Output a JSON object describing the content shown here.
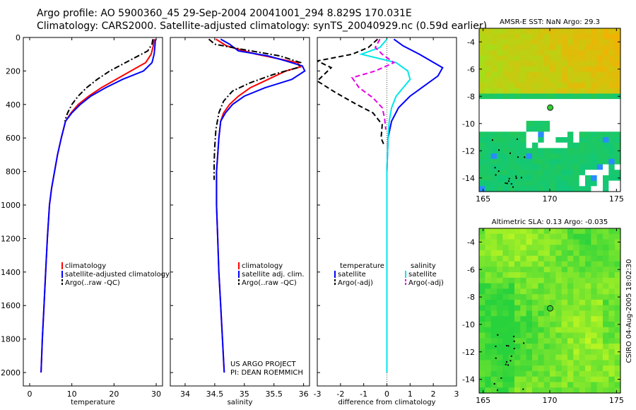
{
  "header": {
    "line1": "Argo profile: AO 5900360_45 29-Sep-2004 20041001_294 8.829S 170.031E",
    "line2": "Climatology: CARS2000. Satellite-adjusted climatology: synTS_20040929.nc (0.59d earlier)"
  },
  "credit": {
    "line1": "US ARGO PROJECT",
    "line2": "PI: DEAN ROEMMICH"
  },
  "timestamp": "CSIRO 04-Aug-2005 18:02:30",
  "colors": {
    "climatology": "#ff0000",
    "satellite": "#0000ff",
    "argo": "#000000",
    "salinity_satellite": "#00e6e6",
    "salinity_argo": "#e600e6"
  },
  "chart_data": [
    {
      "type": "line",
      "id": "temperature",
      "xlabel": "temperature",
      "ylabel": "",
      "xlim": [
        -1.5,
        31.5
      ],
      "ylim": [
        0,
        2080
      ],
      "y_inverted": true,
      "xticks": [
        0,
        10,
        20,
        30
      ],
      "xtick_labels": [
        "0",
        "10",
        "20",
        "30"
      ],
      "yticks": [
        0,
        200,
        400,
        600,
        800,
        1000,
        1200,
        1400,
        1600,
        1800,
        2000
      ],
      "ytick_labels": [
        "0",
        "200",
        "400",
        "600",
        "800",
        "1000",
        "1200",
        "1400",
        "1600",
        "1800",
        "2000"
      ],
      "legend": [
        "climatology",
        "satellite-adjusted climatology",
        "Argo(..raw -QC)"
      ],
      "series": [
        {
          "name": "climatology",
          "style": "solid",
          "color": "#ff0000",
          "points": [
            [
              29.5,
              10
            ],
            [
              29.3,
              50
            ],
            [
              28.8,
              100
            ],
            [
              27.5,
              150
            ],
            [
              24,
              200
            ],
            [
              20.5,
              250
            ],
            [
              17,
              300
            ],
            [
              14,
              350
            ],
            [
              11.5,
              400
            ],
            [
              9.8,
              450
            ],
            [
              8.5,
              500
            ],
            [
              7.5,
              600
            ],
            [
              6.6,
              700
            ],
            [
              5.9,
              800
            ],
            [
              5.2,
              900
            ],
            [
              4.7,
              1000
            ],
            [
              4.2,
              1200
            ],
            [
              3.8,
              1400
            ],
            [
              3.4,
              1600
            ],
            [
              3,
              1800
            ],
            [
              2.7,
              2000
            ]
          ]
        },
        {
          "name": "satellite-adjusted climatology",
          "style": "solid",
          "color": "#0000ff",
          "points": [
            [
              29.8,
              10
            ],
            [
              29.7,
              50
            ],
            [
              29.5,
              100
            ],
            [
              29,
              150
            ],
            [
              27,
              200
            ],
            [
              22,
              250
            ],
            [
              18,
              300
            ],
            [
              14.5,
              350
            ],
            [
              12,
              400
            ],
            [
              10,
              450
            ],
            [
              8.5,
              500
            ],
            [
              7.5,
              600
            ],
            [
              6.6,
              700
            ],
            [
              5.9,
              800
            ],
            [
              5.2,
              900
            ],
            [
              4.7,
              1000
            ],
            [
              4.2,
              1200
            ],
            [
              3.8,
              1400
            ],
            [
              3.4,
              1600
            ],
            [
              3,
              1800
            ],
            [
              2.7,
              2000
            ]
          ]
        },
        {
          "name": "Argo(..raw -QC)",
          "style": "dashdot",
          "color": "#000000",
          "points": [
            [
              29.2,
              10
            ],
            [
              29,
              40
            ],
            [
              28,
              80
            ],
            [
              25,
              120
            ],
            [
              22,
              160
            ],
            [
              19,
              200
            ],
            [
              16,
              250
            ],
            [
              13.5,
              300
            ],
            [
              11.5,
              350
            ],
            [
              10,
              400
            ],
            [
              9,
              450
            ],
            [
              8.3,
              500
            ]
          ]
        }
      ]
    },
    {
      "type": "line",
      "id": "salinity",
      "xlabel": "salinity",
      "xlim": [
        33.75,
        36.1
      ],
      "ylim": [
        0,
        2080
      ],
      "y_inverted": true,
      "xticks": [
        34,
        34.5,
        35,
        35.5,
        36
      ],
      "xtick_labels": [
        "34",
        "34.5",
        "35",
        "35.5",
        "36"
      ],
      "legend": [
        "climatology",
        "satellite adj. clim.",
        "Argo(..raw -QC)"
      ],
      "series": [
        {
          "name": "climatology",
          "style": "solid",
          "color": "#ff0000",
          "points": [
            [
              34.52,
              10
            ],
            [
              34.7,
              50
            ],
            [
              35.2,
              100
            ],
            [
              35.9,
              150
            ],
            [
              35.95,
              175
            ],
            [
              35.7,
              200
            ],
            [
              35.4,
              250
            ],
            [
              35.1,
              300
            ],
            [
              34.9,
              350
            ],
            [
              34.75,
              400
            ],
            [
              34.65,
              450
            ],
            [
              34.6,
              500
            ],
            [
              34.57,
              600
            ],
            [
              34.55,
              700
            ],
            [
              34.53,
              800
            ],
            [
              34.53,
              900
            ],
            [
              34.53,
              1000
            ],
            [
              34.55,
              1200
            ],
            [
              34.57,
              1400
            ],
            [
              34.6,
              1600
            ],
            [
              34.63,
              1800
            ],
            [
              34.66,
              2000
            ]
          ]
        },
        {
          "name": "satellite adj. clim.",
          "style": "solid",
          "color": "#0000ff",
          "points": [
            [
              34.6,
              10
            ],
            [
              34.75,
              40
            ],
            [
              34.9,
              80
            ],
            [
              35.4,
              110
            ],
            [
              35.7,
              140
            ],
            [
              35.98,
              170
            ],
            [
              36.02,
              200
            ],
            [
              35.8,
              250
            ],
            [
              35.35,
              300
            ],
            [
              35,
              350
            ],
            [
              34.8,
              400
            ],
            [
              34.68,
              450
            ],
            [
              34.6,
              500
            ],
            [
              34.57,
              600
            ],
            [
              34.55,
              700
            ],
            [
              34.53,
              800
            ],
            [
              34.53,
              900
            ],
            [
              34.53,
              1000
            ],
            [
              34.55,
              1200
            ],
            [
              34.57,
              1400
            ],
            [
              34.6,
              1600
            ],
            [
              34.63,
              1800
            ],
            [
              34.66,
              2000
            ]
          ]
        },
        {
          "name": "Argo(..raw -QC)",
          "style": "dashdot",
          "color": "#000000",
          "points": [
            [
              34.4,
              10
            ],
            [
              34.5,
              40
            ],
            [
              34.95,
              70
            ],
            [
              35.6,
              110
            ],
            [
              35.95,
              150
            ],
            [
              35.9,
              180
            ],
            [
              35.5,
              220
            ],
            [
              35.1,
              270
            ],
            [
              34.8,
              320
            ],
            [
              34.65,
              380
            ],
            [
              34.57,
              450
            ],
            [
              34.52,
              550
            ],
            [
              34.5,
              650
            ],
            [
              34.49,
              750
            ],
            [
              34.49,
              850
            ]
          ]
        }
      ]
    },
    {
      "type": "line",
      "id": "difference",
      "xlabel": "difference from climatology",
      "xlim": [
        -3,
        3
      ],
      "ylim": [
        0,
        2080
      ],
      "y_inverted": true,
      "xticks": [
        -3,
        -2,
        -1,
        0,
        1,
        2,
        3
      ],
      "xtick_labels": [
        "-3",
        "-2",
        "-1",
        "0",
        "1",
        "2",
        "3"
      ],
      "legend_temperature": [
        "temperature",
        "satellite",
        "Argo(-adj)"
      ],
      "legend_salinity": [
        "salinity",
        "satellite",
        "Argo(-adj)"
      ],
      "series": [
        {
          "name": "temperature satellite",
          "style": "solid",
          "color": "#0000ff",
          "points": [
            [
              0.3,
              10
            ],
            [
              0.7,
              50
            ],
            [
              1.4,
              100
            ],
            [
              2.4,
              180
            ],
            [
              2.2,
              230
            ],
            [
              1.5,
              300
            ],
            [
              1,
              350
            ],
            [
              0.5,
              420
            ],
            [
              0.2,
              500
            ],
            [
              0.05,
              600
            ],
            [
              0,
              800
            ],
            [
              0,
              1000
            ],
            [
              0,
              1200
            ],
            [
              0,
              1400
            ],
            [
              0,
              1600
            ],
            [
              0,
              1800
            ],
            [
              0,
              2000
            ]
          ]
        },
        {
          "name": "temperature Argo(-adj)",
          "style": "dashed",
          "color": "#000000",
          "points": [
            [
              -0.4,
              10
            ],
            [
              -0.8,
              60
            ],
            [
              -1.5,
              100
            ],
            [
              -3,
              140
            ],
            [
              -2.4,
              180
            ],
            [
              -3,
              260
            ],
            [
              -2.2,
              330
            ],
            [
              -1.3,
              400
            ],
            [
              -0.6,
              450
            ],
            [
              -0.2,
              520
            ],
            [
              -0.25,
              600
            ],
            [
              -0.1,
              650
            ]
          ]
        },
        {
          "name": "salinity satellite",
          "style": "solid",
          "color": "#00e6e6",
          "points": [
            [
              0,
              10
            ],
            [
              -0.3,
              60
            ],
            [
              -1.1,
              100
            ],
            [
              0.4,
              150
            ],
            [
              0.9,
              200
            ],
            [
              1,
              250
            ],
            [
              0.7,
              300
            ],
            [
              0.4,
              350
            ],
            [
              0.2,
              420
            ],
            [
              0.1,
              500
            ],
            [
              0.05,
              600
            ],
            [
              0,
              800
            ],
            [
              0,
              1000
            ],
            [
              0,
              1200
            ],
            [
              0,
              1400
            ],
            [
              0,
              1600
            ],
            [
              0,
              1800
            ],
            [
              0,
              2000
            ]
          ]
        },
        {
          "name": "salinity Argo(-adj)",
          "style": "dashed",
          "color": "#e600e6",
          "points": [
            [
              -0.3,
              10
            ],
            [
              -0.5,
              60
            ],
            [
              -0.2,
              100
            ],
            [
              0.3,
              150
            ],
            [
              -0.5,
              200
            ],
            [
              -1.5,
              240
            ],
            [
              -1.2,
              300
            ],
            [
              -0.6,
              360
            ],
            [
              -0.2,
              420
            ],
            [
              -0.1,
              480
            ],
            [
              -0.05,
              550
            ]
          ]
        }
      ]
    },
    {
      "type": "heatmap",
      "id": "sst-map",
      "title": "AMSR-E SST: NaN Argo: 29.3",
      "xlim": [
        164.7,
        175.3
      ],
      "ylim": [
        -15,
        -3
      ],
      "xticks": [
        165,
        170,
        175
      ],
      "xtick_labels": [
        "165",
        "170",
        "175"
      ],
      "yticks": [
        -4,
        -6,
        -8,
        -10,
        -12,
        -14
      ],
      "ytick_labels": [
        "-4",
        "-6",
        "-8",
        "-10",
        "-12",
        "-14"
      ],
      "marker": {
        "lon": 170.031,
        "lat": -8.829,
        "color": "#33cc33"
      }
    },
    {
      "type": "heatmap",
      "id": "sla-map",
      "title": "Altimetric SLA: 0.13 Argo: -0.035",
      "xlim": [
        164.7,
        175.3
      ],
      "ylim": [
        -15,
        -3
      ],
      "xticks": [
        165,
        170,
        175
      ],
      "xtick_labels": [
        "165",
        "170",
        "175"
      ],
      "yticks": [
        -4,
        -6,
        -8,
        -10,
        -12,
        -14
      ],
      "ytick_labels": [
        "-4",
        "-6",
        "-8",
        "-10",
        "-12",
        "-14"
      ],
      "marker": {
        "lon": 170.031,
        "lat": -8.829,
        "color": "#33cc33"
      }
    }
  ]
}
